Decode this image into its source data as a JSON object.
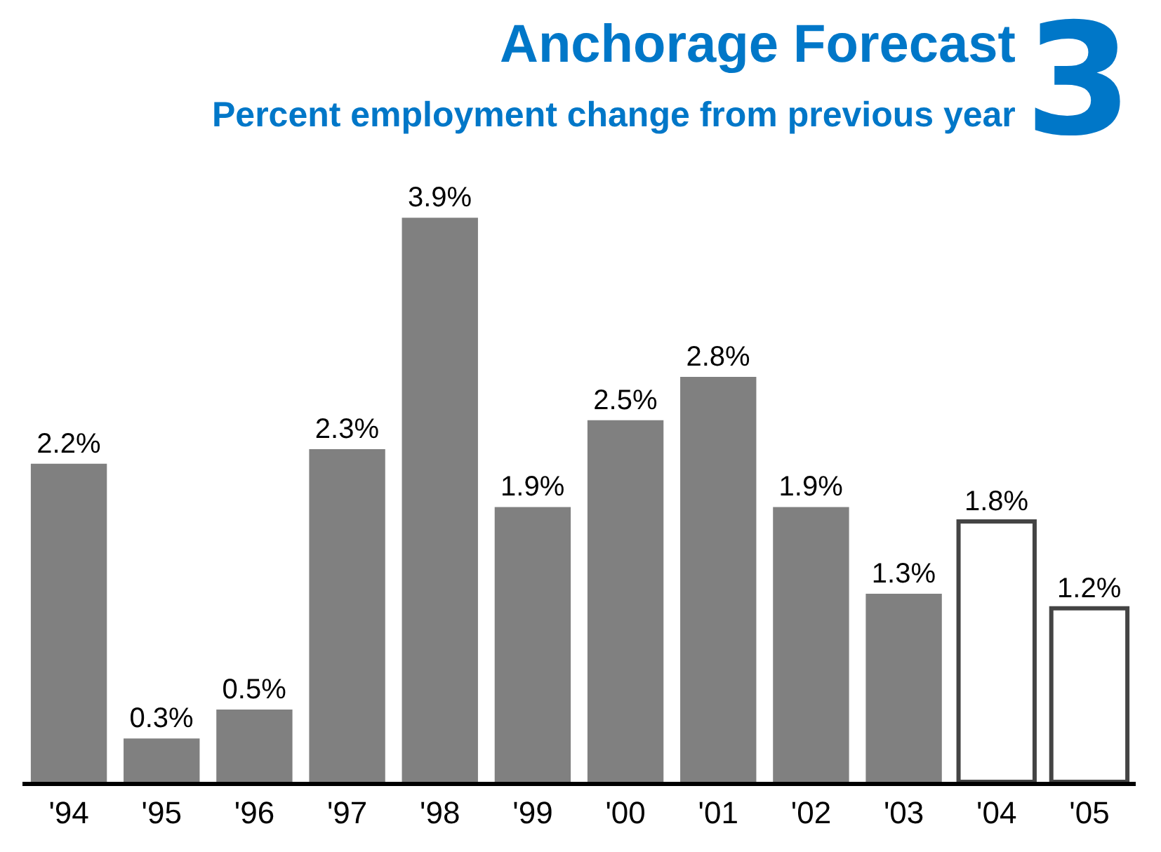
{
  "chart_data": {
    "type": "bar",
    "title": "Anchorage Forecast",
    "subtitle": "Percent employment change from previous year",
    "annotations": [
      "3"
    ],
    "categories": [
      "'94",
      "'95",
      "'96",
      "'97",
      "'98",
      "'99",
      "'00",
      "'01",
      "'02",
      "'03",
      "'04",
      "'05"
    ],
    "values": [
      2.2,
      0.3,
      0.5,
      2.3,
      3.9,
      1.9,
      2.5,
      2.8,
      1.9,
      1.3,
      1.8,
      1.2
    ],
    "value_labels": [
      "2.2%",
      "0.3%",
      "0.5%",
      "2.3%",
      "3.9%",
      "1.9%",
      "2.5%",
      "2.8%",
      "1.9%",
      "1.3%",
      "1.8%",
      "1.2%"
    ],
    "colors": [
      "#808080",
      "#808080",
      "#808080",
      "#808080",
      "#808080",
      "#808080",
      "#808080",
      "#808080",
      "#808080",
      "#808080",
      "#ffffff",
      "#ffffff"
    ],
    "legend": false
  }
}
